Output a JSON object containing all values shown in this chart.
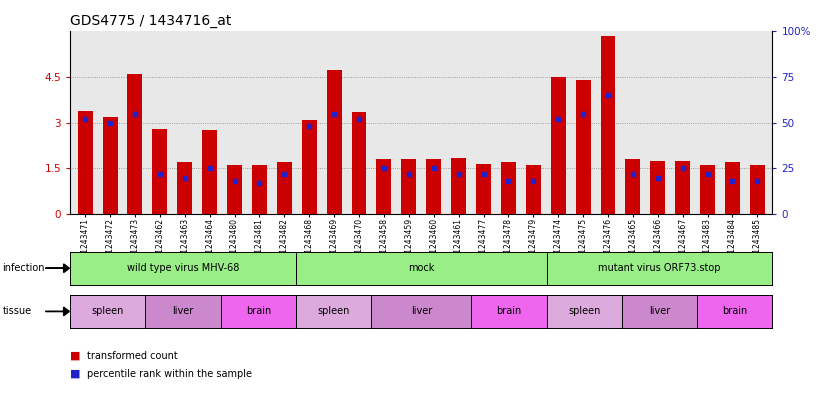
{
  "title": "GDS4775 / 1434716_at",
  "samples": [
    "GSM1243471",
    "GSM1243472",
    "GSM1243473",
    "GSM1243462",
    "GSM1243463",
    "GSM1243464",
    "GSM1243480",
    "GSM1243481",
    "GSM1243482",
    "GSM1243468",
    "GSM1243469",
    "GSM1243470",
    "GSM1243458",
    "GSM1243459",
    "GSM1243460",
    "GSM1243461",
    "GSM1243477",
    "GSM1243478",
    "GSM1243479",
    "GSM1243474",
    "GSM1243475",
    "GSM1243476",
    "GSM1243465",
    "GSM1243466",
    "GSM1243467",
    "GSM1243483",
    "GSM1243484",
    "GSM1243485"
  ],
  "transformed_count": [
    3.4,
    3.2,
    4.6,
    2.8,
    1.7,
    2.75,
    1.6,
    1.6,
    1.7,
    3.1,
    4.75,
    3.35,
    1.8,
    1.8,
    1.8,
    1.85,
    1.65,
    1.7,
    1.6,
    4.5,
    4.4,
    5.85,
    1.8,
    1.75,
    1.75,
    1.6,
    1.7,
    1.6
  ],
  "percentile_rank": [
    52,
    50,
    55,
    22,
    20,
    25,
    18,
    17,
    22,
    48,
    55,
    52,
    25,
    22,
    25,
    22,
    22,
    18,
    18,
    52,
    55,
    65,
    22,
    20,
    25,
    22,
    18,
    18
  ],
  "bar_color": "#cc0000",
  "marker_color": "#2222cc",
  "ylim_left": [
    0,
    6
  ],
  "ylim_right": [
    0,
    100
  ],
  "yticks_left": [
    0,
    1.5,
    3.0,
    4.5
  ],
  "yticks_right": [
    0,
    25,
    50,
    75,
    100
  ],
  "infection_groups": [
    {
      "label": "wild type virus MHV-68",
      "start": 0,
      "end": 9,
      "color": "#99ee88"
    },
    {
      "label": "mock",
      "start": 9,
      "end": 19,
      "color": "#99ee88"
    },
    {
      "label": "mutant virus ORF73.stop",
      "start": 19,
      "end": 28,
      "color": "#99ee88"
    }
  ],
  "tissue_groups": [
    {
      "label": "spleen",
      "start": 0,
      "end": 3,
      "color": "#ddaadd"
    },
    {
      "label": "liver",
      "start": 3,
      "end": 6,
      "color": "#cc88cc"
    },
    {
      "label": "brain",
      "start": 6,
      "end": 9,
      "color": "#ee66ee"
    },
    {
      "label": "spleen",
      "start": 9,
      "end": 12,
      "color": "#ddaadd"
    },
    {
      "label": "liver",
      "start": 12,
      "end": 16,
      "color": "#cc88cc"
    },
    {
      "label": "brain",
      "start": 16,
      "end": 19,
      "color": "#ee66ee"
    },
    {
      "label": "spleen",
      "start": 19,
      "end": 22,
      "color": "#ddaadd"
    },
    {
      "label": "liver",
      "start": 22,
      "end": 25,
      "color": "#cc88cc"
    },
    {
      "label": "brain",
      "start": 25,
      "end": 28,
      "color": "#ee66ee"
    }
  ],
  "infection_label": "infection",
  "tissue_label": "tissue",
  "legend_transformed": "transformed count",
  "legend_percentile": "percentile rank within the sample",
  "bar_width": 0.6,
  "xtick_fontsize": 5.5,
  "ytick_fontsize": 7.5,
  "title_fontsize": 10,
  "row_fontsize": 7,
  "legend_fontsize": 7
}
